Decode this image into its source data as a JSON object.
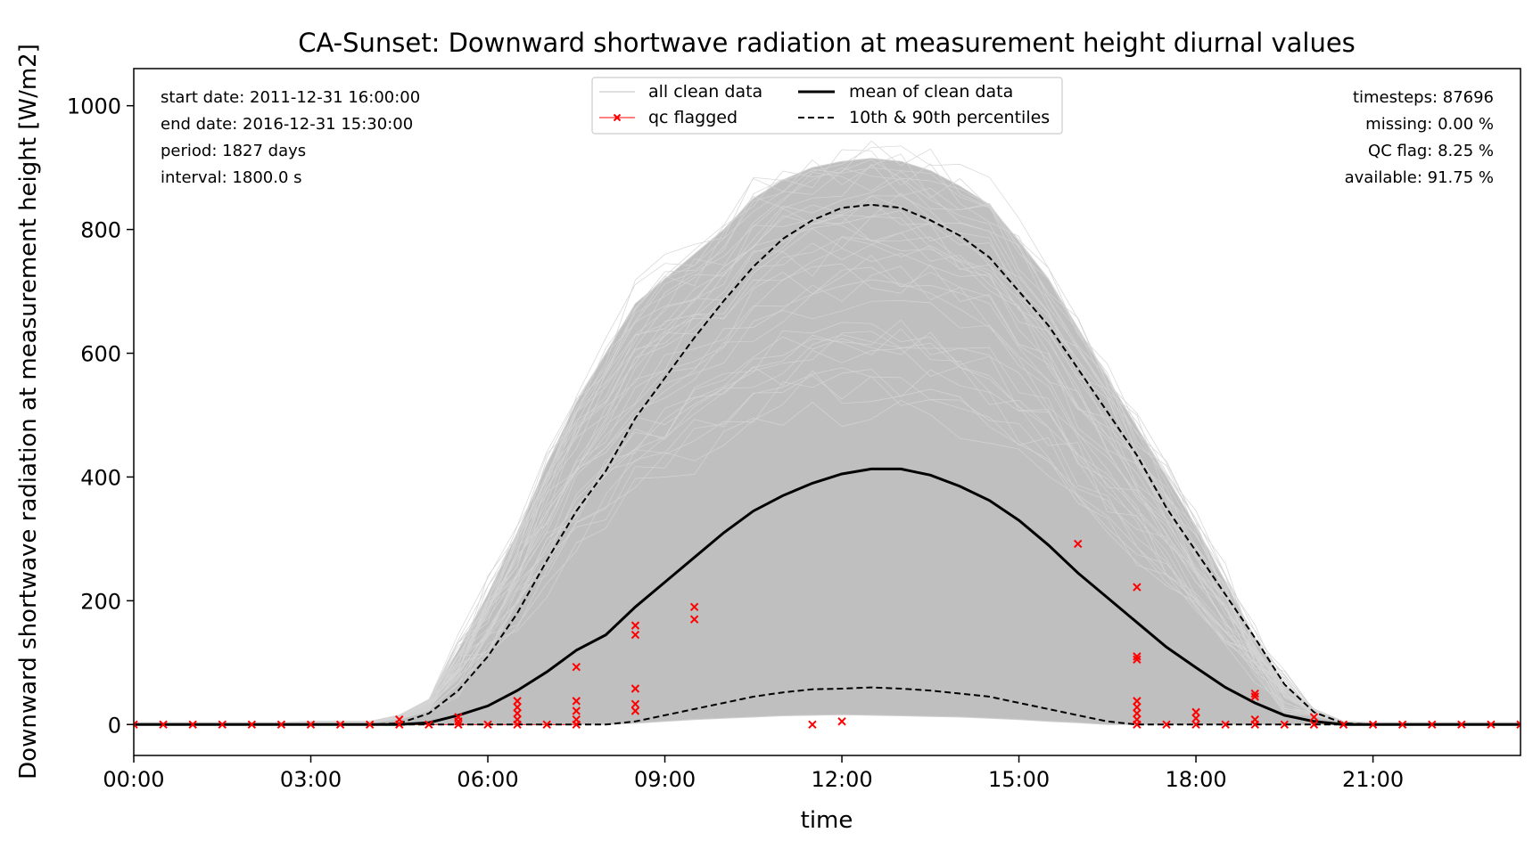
{
  "chart_data": {
    "type": "line",
    "title": "CA-Sunset: Downward shortwave radiation at measurement height diurnal values",
    "xlabel": "time",
    "ylabel": "Downward shortwave radiation at measurement height [W/m2]",
    "xlim_hours": [
      0,
      23.5
    ],
    "ylim": [
      -50,
      1060
    ],
    "x_ticks": [
      {
        "hour": 0,
        "label": "00:00"
      },
      {
        "hour": 3,
        "label": "03:00"
      },
      {
        "hour": 6,
        "label": "06:00"
      },
      {
        "hour": 9,
        "label": "09:00"
      },
      {
        "hour": 12,
        "label": "12:00"
      },
      {
        "hour": 15,
        "label": "15:00"
      },
      {
        "hour": 18,
        "label": "18:00"
      },
      {
        "hour": 21,
        "label": "21:00"
      }
    ],
    "y_ticks": [
      0,
      200,
      400,
      600,
      800,
      1000
    ],
    "legend": {
      "placement": "top-center",
      "entries": [
        {
          "label": "all clean data",
          "style": "thin-gray"
        },
        {
          "label": "qc flagged",
          "style": "red-x"
        },
        {
          "label": "mean of clean data",
          "style": "thick-black"
        },
        {
          "label": "10th & 90th percentiles",
          "style": "dashed-black"
        }
      ]
    },
    "info_left": [
      "start date: 2011-12-31 16:00:00",
      "end date: 2016-12-31 15:30:00",
      "period: 1827 days",
      "interval: 1800.0 s"
    ],
    "info_right": [
      "timesteps: 87696",
      "missing: 0.00 %",
      "QC flag: 8.25 %",
      "available: 91.75 %"
    ],
    "x_hours": [
      0,
      0.5,
      1,
      1.5,
      2,
      2.5,
      3,
      3.5,
      4,
      4.5,
      5,
      5.5,
      6,
      6.5,
      7,
      7.5,
      8,
      8.5,
      9,
      9.5,
      10,
      10.5,
      11,
      11.5,
      12,
      12.5,
      13,
      13.5,
      14,
      14.5,
      15,
      15.5,
      16,
      16.5,
      17,
      17.5,
      18,
      18.5,
      19,
      19.5,
      20,
      20.5,
      21,
      21.5,
      22,
      22.5,
      23,
      23.5
    ],
    "series": [
      {
        "name": "mean of clean data",
        "values": [
          0,
          0,
          0,
          0,
          0,
          0,
          0,
          0,
          0,
          0,
          3,
          15,
          30,
          55,
          85,
          120,
          145,
          190,
          230,
          270,
          310,
          345,
          370,
          390,
          405,
          413,
          413,
          403,
          385,
          362,
          330,
          290,
          245,
          205,
          165,
          125,
          92,
          60,
          35,
          15,
          5,
          0,
          0,
          0,
          0,
          0,
          0,
          0
        ]
      },
      {
        "name": "10th & 90th percentiles",
        "part": "p90",
        "values": [
          0,
          0,
          0,
          0,
          0,
          0,
          0,
          0,
          0,
          2,
          18,
          55,
          110,
          180,
          265,
          345,
          410,
          495,
          560,
          625,
          685,
          740,
          785,
          815,
          835,
          840,
          835,
          815,
          790,
          755,
          700,
          645,
          575,
          505,
          435,
          350,
          280,
          210,
          140,
          65,
          20,
          2,
          0,
          0,
          0,
          0,
          0,
          0
        ]
      },
      {
        "name": "10th & 90th percentiles",
        "part": "p10",
        "values": [
          0,
          0,
          0,
          0,
          0,
          0,
          0,
          0,
          0,
          0,
          0,
          0,
          0,
          0,
          0,
          0,
          0,
          5,
          15,
          25,
          35,
          45,
          52,
          57,
          58,
          60,
          58,
          55,
          50,
          45,
          35,
          25,
          15,
          5,
          0,
          0,
          0,
          0,
          0,
          0,
          0,
          0,
          0,
          0,
          0,
          0,
          0,
          0
        ]
      },
      {
        "name": "all clean data",
        "part": "envelope_max",
        "values": [
          3,
          3,
          3,
          3,
          3,
          3,
          5,
          5,
          5,
          15,
          40,
          120,
          210,
          310,
          420,
          520,
          600,
          680,
          720,
          760,
          800,
          850,
          880,
          900,
          910,
          915,
          910,
          895,
          870,
          840,
          780,
          720,
          640,
          560,
          480,
          400,
          320,
          230,
          140,
          65,
          25,
          5,
          3,
          3,
          3,
          3,
          3,
          3
        ]
      },
      {
        "name": "all clean data",
        "part": "envelope_min",
        "values": [
          0,
          0,
          0,
          0,
          0,
          0,
          0,
          0,
          0,
          0,
          0,
          0,
          0,
          0,
          0,
          0,
          0,
          2,
          5,
          8,
          10,
          12,
          14,
          15,
          16,
          15,
          14,
          13,
          12,
          10,
          8,
          5,
          3,
          0,
          0,
          0,
          0,
          0,
          0,
          0,
          0,
          0,
          0,
          0,
          0,
          0,
          0,
          0
        ]
      }
    ],
    "qc_flagged": [
      [
        0,
        0
      ],
      [
        0.5,
        0
      ],
      [
        1,
        0
      ],
      [
        1.5,
        0
      ],
      [
        2,
        0
      ],
      [
        2.5,
        0
      ],
      [
        3,
        0
      ],
      [
        3.5,
        0
      ],
      [
        4,
        0
      ],
      [
        4.5,
        0
      ],
      [
        4.5,
        8
      ],
      [
        5,
        0
      ],
      [
        5.5,
        0
      ],
      [
        5.5,
        5
      ],
      [
        5.5,
        12
      ],
      [
        6,
        0
      ],
      [
        6.5,
        0
      ],
      [
        6.5,
        8
      ],
      [
        6.5,
        18
      ],
      [
        6.5,
        28
      ],
      [
        6.5,
        38
      ],
      [
        7,
        0
      ],
      [
        7.5,
        0
      ],
      [
        7.5,
        8
      ],
      [
        7.5,
        22
      ],
      [
        7.5,
        38
      ],
      [
        7.5,
        93
      ],
      [
        8.5,
        22
      ],
      [
        8.5,
        33
      ],
      [
        8.5,
        58
      ],
      [
        8.5,
        145
      ],
      [
        8.5,
        160
      ],
      [
        9.5,
        170
      ],
      [
        9.5,
        190
      ],
      [
        11.5,
        0
      ],
      [
        12,
        5
      ],
      [
        16,
        292
      ],
      [
        17,
        0
      ],
      [
        17,
        8
      ],
      [
        17,
        18
      ],
      [
        17,
        28
      ],
      [
        17,
        38
      ],
      [
        17,
        105
      ],
      [
        17,
        110
      ],
      [
        17,
        222
      ],
      [
        17.5,
        0
      ],
      [
        18,
        0
      ],
      [
        18,
        10
      ],
      [
        18,
        20
      ],
      [
        18.5,
        0
      ],
      [
        19,
        0
      ],
      [
        19,
        8
      ],
      [
        19,
        45
      ],
      [
        19,
        50
      ],
      [
        19.5,
        0
      ],
      [
        20,
        0
      ],
      [
        20,
        12
      ],
      [
        20.5,
        0
      ],
      [
        21,
        0
      ],
      [
        21.5,
        0
      ],
      [
        22,
        0
      ],
      [
        22.5,
        0
      ],
      [
        23,
        0
      ],
      [
        23.5,
        0
      ]
    ],
    "colors": {
      "clean": "#bfbfbf",
      "qc": "#ff0000",
      "mean": "#000000",
      "percentile": "#000000"
    },
    "grid": false
  }
}
